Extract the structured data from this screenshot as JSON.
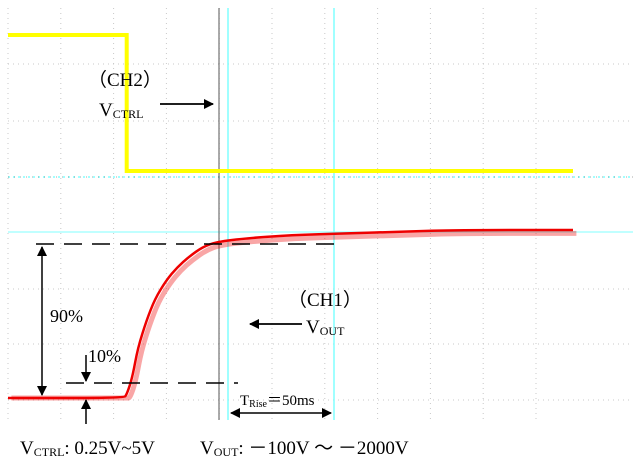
{
  "chart_data": {
    "type": "line",
    "title": "",
    "xlabel": "",
    "ylabel": "",
    "grid": true,
    "series": [
      {
        "name": "CH2",
        "color": "#ffff00",
        "points": [
          [
            0,
            1
          ],
          [
            2.1,
            1
          ],
          [
            2.1,
            0
          ],
          [
            10,
            0
          ]
        ]
      },
      {
        "name": "CH1",
        "color": "#ee0000",
        "points": [
          [
            0,
            0
          ],
          [
            2.05,
            0
          ],
          [
            2.1,
            0.02
          ],
          [
            2.2,
            0.12
          ],
          [
            2.3,
            0.3
          ],
          [
            2.45,
            0.46
          ],
          [
            2.6,
            0.59
          ],
          [
            2.8,
            0.7
          ],
          [
            3.0,
            0.78
          ],
          [
            3.2,
            0.84
          ],
          [
            3.45,
            0.9
          ],
          [
            3.7,
            0.93
          ],
          [
            4.2,
            0.95
          ],
          [
            5.0,
            0.97
          ],
          [
            6.0,
            0.98
          ],
          [
            7.0,
            0.99
          ],
          [
            8.0,
            1.0
          ],
          [
            10,
            1.0
          ]
        ]
      }
    ]
  },
  "labels": {
    "ch2_name": "（CH2）",
    "ch2_signal": "V",
    "ch2_signal_sub": "CTRL",
    "ch1_name": "（CH1）",
    "ch1_signal": "V",
    "ch1_signal_sub": "OUT",
    "pct90": "90%",
    "pct10": "10%",
    "trise_main": "T",
    "trise_sub": "Rise",
    "trise_value": "＝50ms",
    "footer_vctrl": "V",
    "footer_vctrl_sub": "CTRL",
    "footer_vctrl_range": ": 0.25V~5V",
    "footer_vout": "V",
    "footer_vout_sub": "OUT",
    "footer_vout_range": ":  －100V ～ －2000V"
  },
  "colors": {
    "ch2": "#ffff00",
    "ch1": "#ee0000",
    "cursor": "#80ffff",
    "grid": "#c8c8c8"
  }
}
